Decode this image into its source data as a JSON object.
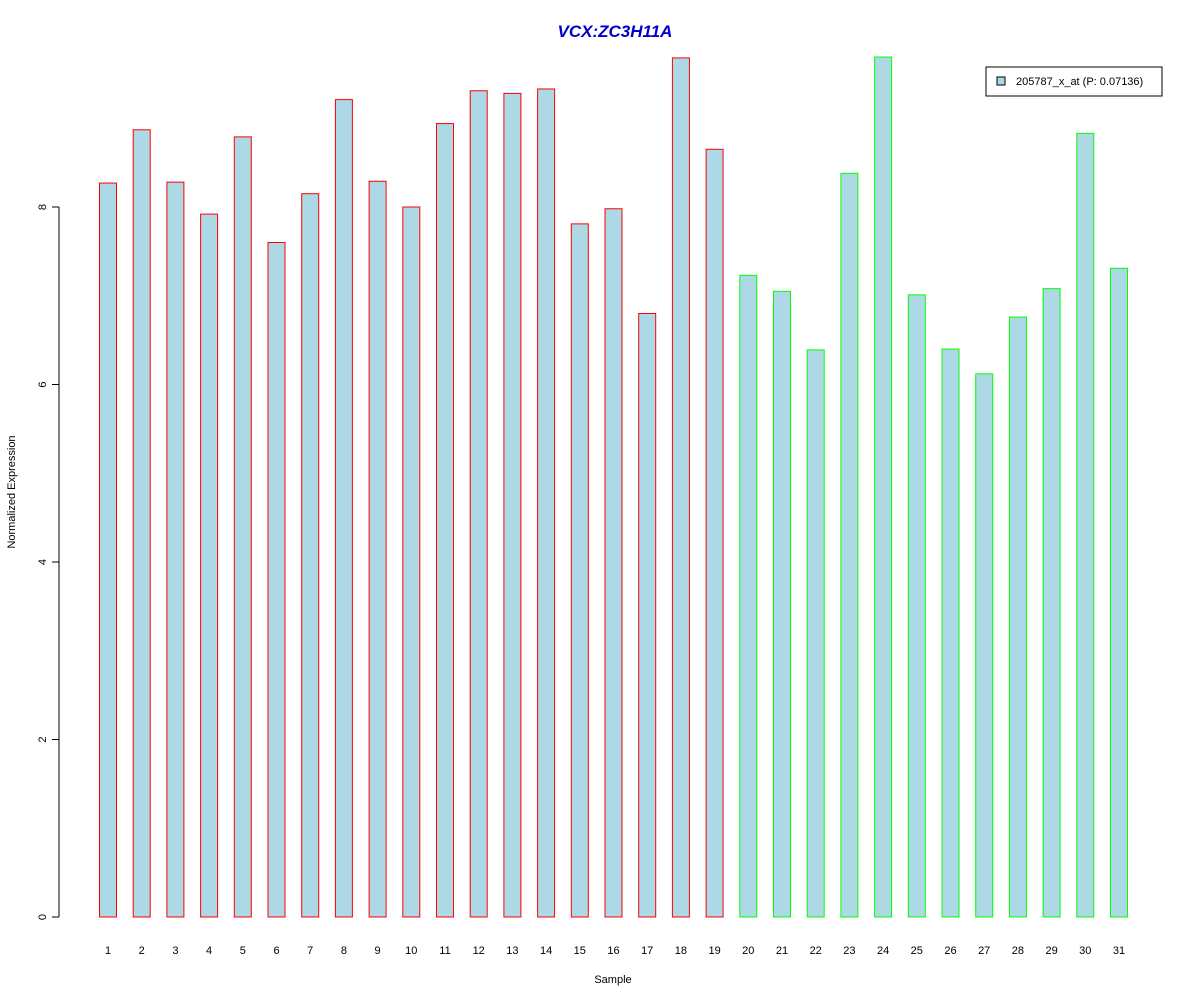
{
  "chart_data": {
    "type": "bar",
    "title": "VCX:ZC3H11A",
    "xlabel": "Sample",
    "ylabel": "Normalized Expression",
    "ylim": [
      0,
      9.8
    ],
    "y_ticks": [
      0,
      2,
      4,
      6,
      8
    ],
    "grid": false,
    "categories": [
      "1",
      "2",
      "3",
      "4",
      "5",
      "6",
      "7",
      "8",
      "9",
      "10",
      "11",
      "12",
      "13",
      "14",
      "15",
      "16",
      "17",
      "18",
      "19",
      "20",
      "21",
      "22",
      "23",
      "24",
      "25",
      "26",
      "27",
      "28",
      "29",
      "30",
      "31"
    ],
    "series": [
      {
        "name": "205787_x_at (P: 0.07136)",
        "values": [
          8.27,
          8.87,
          8.28,
          7.92,
          8.79,
          7.6,
          8.15,
          9.21,
          8.29,
          8.0,
          8.94,
          9.31,
          9.28,
          9.33,
          7.81,
          7.98,
          6.8,
          9.68,
          8.65,
          7.23,
          7.05,
          6.39,
          8.38,
          9.69,
          7.01,
          6.4,
          6.12,
          6.76,
          7.08,
          8.83,
          7.31
        ]
      }
    ],
    "group_outline": [
      "#ff0000",
      "#ff0000",
      "#ff0000",
      "#ff0000",
      "#ff0000",
      "#ff0000",
      "#ff0000",
      "#ff0000",
      "#ff0000",
      "#ff0000",
      "#ff0000",
      "#ff0000",
      "#ff0000",
      "#ff0000",
      "#ff0000",
      "#ff0000",
      "#ff0000",
      "#ff0000",
      "#ff0000",
      "#00ff00",
      "#00ff00",
      "#00ff00",
      "#00ff00",
      "#00ff00",
      "#00ff00",
      "#00ff00",
      "#00ff00",
      "#00ff00",
      "#00ff00",
      "#00ff00",
      "#00ff00"
    ],
    "bar_fill": "#add8e6",
    "title_color": "#0000cc",
    "legend_position": "top-right"
  }
}
